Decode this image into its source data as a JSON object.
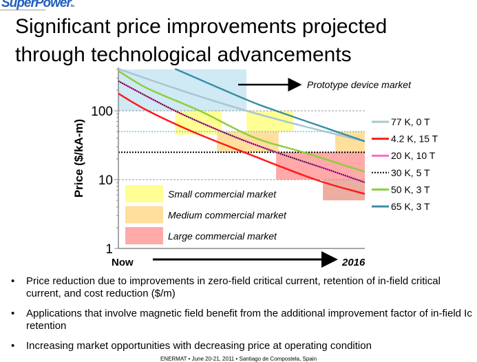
{
  "logo": {
    "text": "SuperPower",
    "suffix": "Inc."
  },
  "title": [
    "Significant price improvements projected",
    "through technological advancements"
  ],
  "bullets": [
    "Price reduction due to improvements in zero-field critical current, retention of in-field critical current, and cost reduction ($/m)",
    "Applications that involve magnetic field benefit from the additional improvement factor of in-field Ic retention",
    "Increasing market opportunities with decreasing price at operating condition"
  ],
  "footer": "ENERMAT • June 20-21, 2011 • Santiago de Compostela, Spain",
  "chart_data": {
    "type": "line",
    "ylabel": "Price ($/kA-m)",
    "yscale": "log",
    "ylim": [
      1,
      400
    ],
    "yticks": [
      "1",
      "10",
      "100"
    ],
    "xlim": [
      0,
      1
    ],
    "xstart_label": "Now",
    "xend_label": "2016",
    "reference_lines": [
      {
        "y": 100,
        "color": "#999999",
        "style": "dashed"
      },
      {
        "y": 50,
        "color": "#8fd0e8",
        "style": "dotted"
      },
      {
        "y": 25,
        "color": "#000000",
        "style": "dotted"
      },
      {
        "y": 10,
        "color": "#999999",
        "style": "dashed"
      }
    ],
    "series": [
      {
        "name": "77 K, 0 T",
        "color": "#a9c6d1",
        "dash": false,
        "x": [
          0,
          0.27,
          0.52,
          0.75,
          1
        ],
        "y": [
          407,
          190,
          100,
          60,
          36
        ]
      },
      {
        "name": "4.2 K, 15 T",
        "color": "#ff1a1a",
        "dash": false,
        "x": [
          0,
          0.12,
          0.3,
          0.51,
          0.8,
          1
        ],
        "y": [
          178,
          100,
          50,
          25,
          10,
          6.2
        ]
      },
      {
        "name": "20 K, 10 T",
        "color": "#ff66cc",
        "dash": false,
        "x": [
          0,
          0.23,
          0.45,
          0.64,
          0.85,
          1
        ],
        "y": [
          270,
          100,
          45,
          25,
          14,
          9.1
        ]
      },
      {
        "name": "30 K, 5 T",
        "color": "#000000",
        "dash": true,
        "x": [
          0,
          0.23,
          0.45,
          0.64,
          0.85,
          1
        ],
        "y": [
          270,
          100,
          45,
          25,
          14,
          9.1
        ]
      },
      {
        "name": "50 K, 3 T",
        "color": "#8ccf3c",
        "dash": false,
        "x": [
          0,
          0.12,
          0.33,
          0.55,
          0.75,
          1
        ],
        "y": [
          380,
          210,
          100,
          41,
          25,
          13
        ]
      },
      {
        "name": "65 K, 3 T",
        "color": "#3b8ea5",
        "dash": false,
        "x": [
          0.23,
          0.52,
          0.64,
          0.85,
          1
        ],
        "y": [
          407,
          145,
          100,
          55,
          36
        ]
      }
    ],
    "regions": [
      {
        "market": "prototype",
        "x": [
          0,
          0.52
        ],
        "y": [
          100,
          400
        ],
        "color": "#cfe9f5"
      },
      {
        "market": "small",
        "x": [
          0.23,
          0.42
        ],
        "y": [
          45,
          100
        ],
        "color": "#ffff80"
      },
      {
        "market": "small",
        "x": [
          0.52,
          0.71
        ],
        "y": [
          50,
          100
        ],
        "color": "#ffff80"
      },
      {
        "market": "medium",
        "x": [
          0.4,
          0.65
        ],
        "y": [
          25,
          50
        ],
        "color": "#ffd98a"
      },
      {
        "market": "medium",
        "x": [
          0.88,
          1
        ],
        "y": [
          25,
          50
        ],
        "color": "#ffd98a"
      },
      {
        "market": "large",
        "x": [
          0.64,
          1
        ],
        "y": [
          10,
          25
        ],
        "color": "#ff9a9a"
      },
      {
        "market": "large",
        "x": [
          0.83,
          1
        ],
        "y": [
          5,
          10
        ],
        "color": "#e8a090"
      }
    ],
    "market_legend": [
      {
        "label": "Small commercial market",
        "color": "#ffff80"
      },
      {
        "label": "Medium commercial market",
        "color": "#ffd98a"
      },
      {
        "label": "Large commercial market",
        "color": "#ff9a9a"
      }
    ],
    "annotation": "Prototype device market"
  }
}
